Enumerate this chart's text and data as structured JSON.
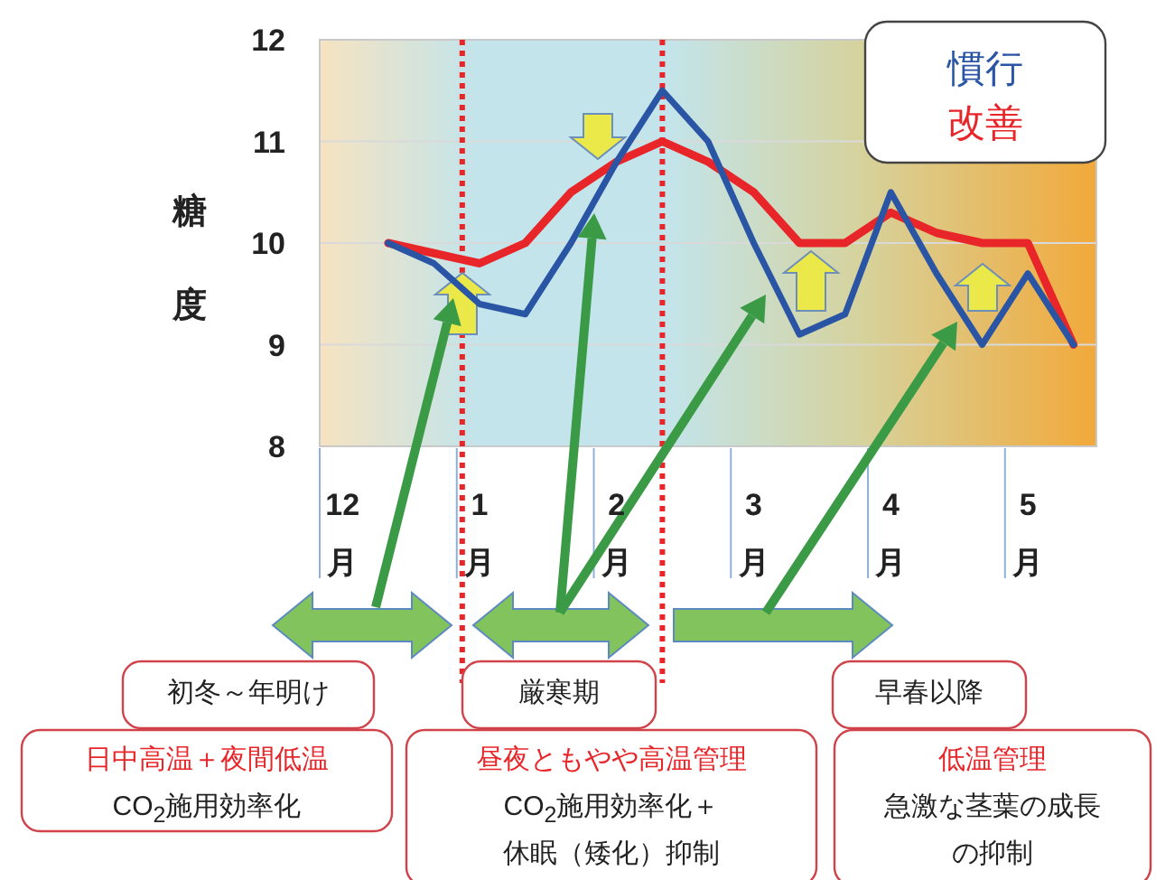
{
  "chart_data": {
    "type": "line",
    "categories": [
      "12月",
      null,
      null,
      "1月",
      null,
      null,
      "2月",
      null,
      null,
      "3月",
      null,
      null,
      "4月",
      null,
      null,
      "5月",
      null
    ],
    "series": [
      {
        "name": "改善",
        "color": "#e8262a",
        "values": [
          null,
          10.0,
          9.9,
          9.8,
          10.0,
          10.5,
          10.8,
          11.0,
          10.8,
          10.5,
          10.0,
          10.0,
          10.3,
          10.1,
          10.0,
          10.0,
          9.0
        ]
      },
      {
        "name": "慣行",
        "color": "#2a55a5",
        "values": [
          null,
          10.0,
          9.8,
          9.4,
          9.3,
          10.0,
          10.8,
          11.5,
          11.0,
          10.0,
          9.1,
          9.3,
          10.5,
          9.7,
          9.0,
          9.7,
          9.0
        ]
      }
    ],
    "ylabel": "糖度",
    "ylim": [
      8,
      12
    ],
    "yticks": [
      8,
      9,
      10,
      11,
      12
    ],
    "grid": true,
    "legend": "top right",
    "annotations": [
      "初冬～年明け",
      "日中高温＋夜間低温",
      "CO$_{2}$施用効率化",
      "厳寒期",
      "昼夜ともやや高温管理",
      "CO$_{2}$施用効率化＋",
      "休眠（矮化）抑制",
      "早春以降",
      "低温管理",
      "急激な茎葉の成長",
      "の抑制"
    ]
  }
}
